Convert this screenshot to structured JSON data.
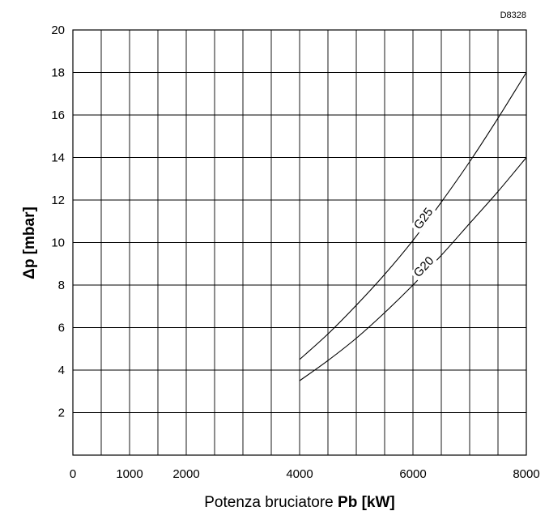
{
  "chart_code": "D8328",
  "chart_data": {
    "type": "line",
    "title": "",
    "xlabel": {
      "prefix": "Potenza bruciatore ",
      "bold": "Pb [kW]"
    },
    "ylabel": "Δp [mbar]",
    "xlim": [
      0,
      8000
    ],
    "ylim": [
      0,
      20
    ],
    "x_ticks": [
      {
        "value": 0,
        "label": "0"
      },
      {
        "value": 1000,
        "label": "1000"
      },
      {
        "value": 2000,
        "label": "2000"
      },
      {
        "value": 4000,
        "label": "4000"
      },
      {
        "value": 6000,
        "label": "6000"
      },
      {
        "value": 8000,
        "label": "8000"
      }
    ],
    "x_grid": [
      0,
      500,
      1000,
      1500,
      2000,
      2500,
      3000,
      3500,
      4000,
      4500,
      5000,
      5500,
      6000,
      6500,
      7000,
      7500,
      8000
    ],
    "y_ticks": [
      {
        "value": 2,
        "label": "2"
      },
      {
        "value": 4,
        "label": "4"
      },
      {
        "value": 6,
        "label": "6"
      },
      {
        "value": 8,
        "label": "8"
      },
      {
        "value": 10,
        "label": "10"
      },
      {
        "value": 12,
        "label": "12"
      },
      {
        "value": 14,
        "label": "14"
      },
      {
        "value": 16,
        "label": "16"
      },
      {
        "value": 18,
        "label": "18"
      },
      {
        "value": 20,
        "label": "20"
      }
    ],
    "y_grid": [
      0,
      2,
      4,
      6,
      8,
      10,
      12,
      14,
      16,
      18,
      20
    ],
    "grid": true,
    "series": [
      {
        "name": "G25",
        "x": [
          4000,
          4500,
          5000,
          5500,
          6000,
          6500,
          7000,
          7500,
          8000
        ],
        "values": [
          4.5,
          5.7,
          7.05,
          8.5,
          10.1,
          11.9,
          13.8,
          15.85,
          18.0
        ],
        "label_at": 6250
      },
      {
        "name": "G20",
        "x": [
          4000,
          4500,
          5000,
          5500,
          6000,
          6500,
          7000,
          7500,
          8000
        ],
        "values": [
          3.5,
          4.45,
          5.5,
          6.7,
          8.0,
          9.4,
          10.9,
          12.4,
          14.0
        ],
        "label_at": 6250
      }
    ]
  }
}
